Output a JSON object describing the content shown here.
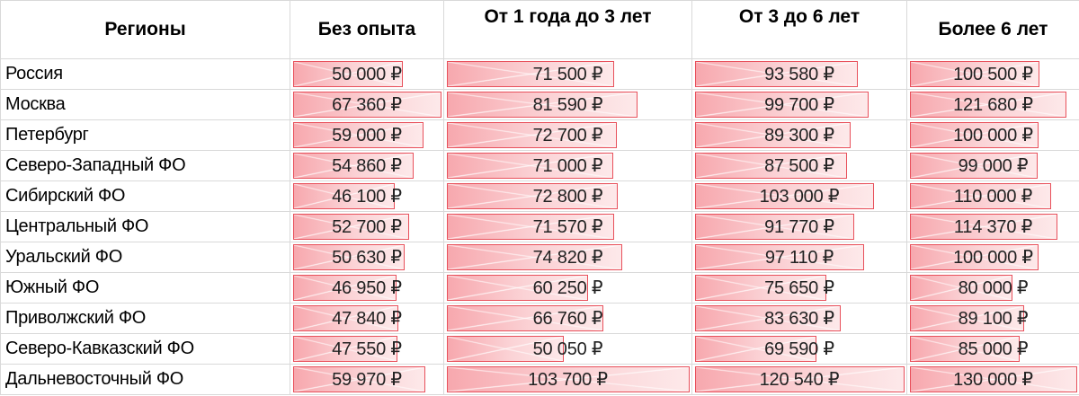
{
  "headers": [
    "Регионы",
    "Без опыта",
    "От 1 года до 3 лет",
    "От 3 до 6 лет",
    "Более 6 лет"
  ],
  "accent_color": "#e8505b",
  "bar_max": {
    "col1": 67360,
    "col2": 103700,
    "col3": 120540,
    "col4": 130000
  },
  "rows": [
    {
      "region": "Россия",
      "v1": "50 000 ₽",
      "v2": "71 500 ₽",
      "v3": "93 580 ₽",
      "v4": "100 500 ₽",
      "n1": 50000,
      "n2": 71500,
      "n3": 93580,
      "n4": 100500
    },
    {
      "region": "Москва",
      "v1": "67 360 ₽",
      "v2": "81 590 ₽",
      "v3": "99 700 ₽",
      "v4": "121 680 ₽",
      "n1": 67360,
      "n2": 81590,
      "n3": 99700,
      "n4": 121680
    },
    {
      "region": "Петербург",
      "v1": "59 000 ₽",
      "v2": "72 700 ₽",
      "v3": "89 300 ₽",
      "v4": "100 000 ₽",
      "n1": 59000,
      "n2": 72700,
      "n3": 89300,
      "n4": 100000
    },
    {
      "region": "Северо-Западный ФО",
      "v1": "54 860 ₽",
      "v2": "71 000 ₽",
      "v3": "87 500 ₽",
      "v4": "99 000 ₽",
      "n1": 54860,
      "n2": 71000,
      "n3": 87500,
      "n4": 99000
    },
    {
      "region": "Сибирский ФО",
      "v1": "46 100 ₽",
      "v2": "72 800 ₽",
      "v3": "103 000 ₽",
      "v4": "110 000 ₽",
      "n1": 46100,
      "n2": 72800,
      "n3": 103000,
      "n4": 110000
    },
    {
      "region": "Центральный ФО",
      "v1": "52 700 ₽",
      "v2": "71 570 ₽",
      "v3": "91 770 ₽",
      "v4": "114 370 ₽",
      "n1": 52700,
      "n2": 71570,
      "n3": 91770,
      "n4": 114370
    },
    {
      "region": "Уральский ФО",
      "v1": "50 630 ₽",
      "v2": "74 820 ₽",
      "v3": "97 110 ₽",
      "v4": "100 000 ₽",
      "n1": 50630,
      "n2": 74820,
      "n3": 97110,
      "n4": 100000
    },
    {
      "region": "Южный ФО",
      "v1": "46 950 ₽",
      "v2": "60 250 ₽",
      "v3": "75 650 ₽",
      "v4": "80 000 ₽",
      "n1": 46950,
      "n2": 60250,
      "n3": 75650,
      "n4": 80000
    },
    {
      "region": "Приволжский ФО",
      "v1": "47 840 ₽",
      "v2": "66 760 ₽",
      "v3": "83 630 ₽",
      "v4": "89 100 ₽",
      "n1": 47840,
      "n2": 66760,
      "n3": 83630,
      "n4": 89100
    },
    {
      "region": "Северо-Кавказский ФО",
      "v1": "47 550 ₽",
      "v2": "50 050 ₽",
      "v3": "69 590 ₽",
      "v4": "85 000 ₽",
      "n1": 47550,
      "n2": 50050,
      "n3": 69590,
      "n4": 85000
    },
    {
      "region": "Дальневосточный ФО",
      "v1": "59 970 ₽",
      "v2": "103 700 ₽",
      "v3": "120 540 ₽",
      "v4": "130 000 ₽",
      "n1": 59970,
      "n2": 103700,
      "n3": 120540,
      "n4": 130000
    }
  ]
}
